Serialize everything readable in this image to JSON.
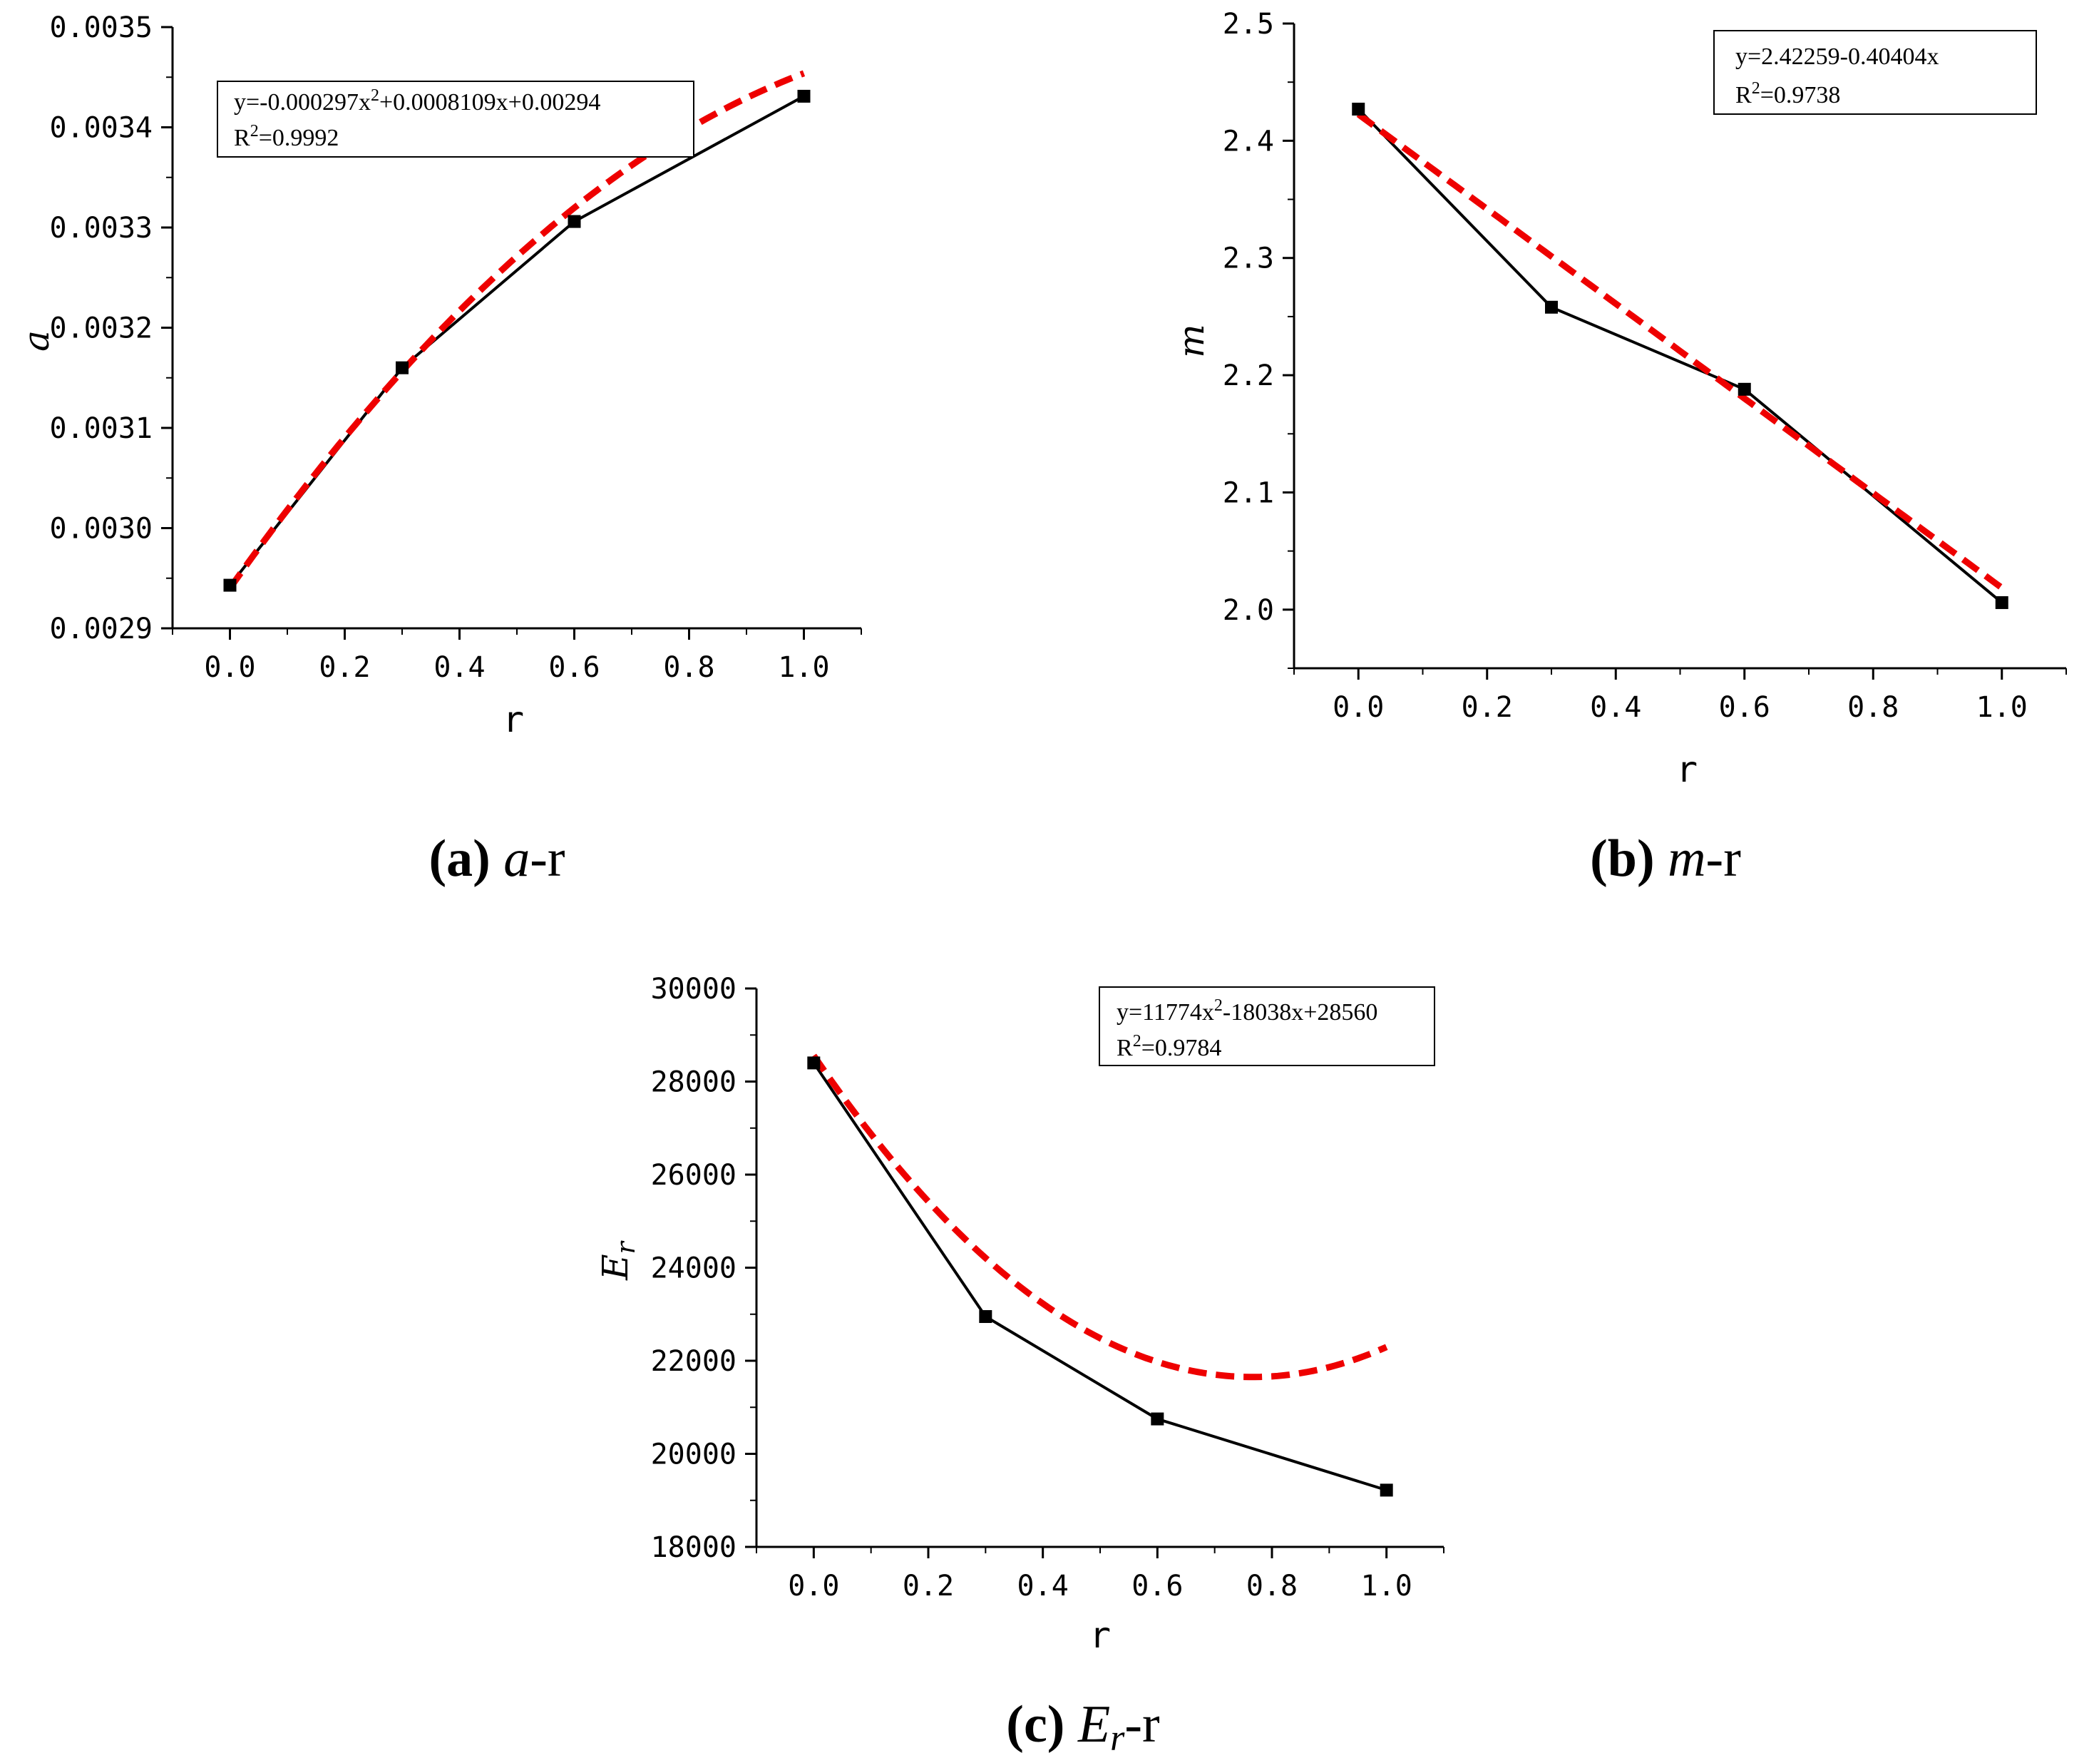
{
  "chart_data": [
    {
      "id": "a",
      "type": "line",
      "caption": {
        "letter": "(a)",
        "var": "a",
        "rest": "-r"
      },
      "xlabel": "r",
      "ylabel": "a",
      "xlim": [
        -0.1,
        1.1
      ],
      "ylim": [
        0.0029,
        0.0035
      ],
      "xticks": [
        0.0,
        0.2,
        0.4,
        0.6,
        0.8,
        1.0
      ],
      "xtick_labels": [
        "0.0",
        "0.2",
        "0.4",
        "0.6",
        "0.8",
        "1.0"
      ],
      "yticks": [
        0.0029,
        0.003,
        0.0031,
        0.0032,
        0.0033,
        0.0034,
        0.0035
      ],
      "ytick_labels": [
        "0.0029",
        "0.0030",
        "0.0031",
        "0.0032",
        "0.0033",
        "0.0034",
        "0.0035"
      ],
      "series": [
        {
          "name": "data",
          "color": "#000000",
          "x": [
            0.0,
            0.3,
            0.6,
            1.0
          ],
          "y": [
            0.002943,
            0.00316,
            0.003306,
            0.003431
          ]
        }
      ],
      "fit": {
        "coef": [
          -0.000297,
          0.0008109,
          0.00294
        ],
        "color": "#ee0000"
      },
      "legend": {
        "line1_pre": "y=-0.000297x",
        "line1_sup": "2",
        "line1_post": "+0.0008109x+0.00294",
        "line2_pre": "R",
        "line2_sup": "2",
        "line2_post": "=0.9992"
      }
    },
    {
      "id": "b",
      "type": "line",
      "caption": {
        "letter": "(b)",
        "var": "m",
        "rest": "-r"
      },
      "xlabel": "r",
      "ylabel": "m",
      "xlim": [
        -0.1,
        1.1
      ],
      "ylim": [
        1.95,
        2.5
      ],
      "xticks": [
        0.0,
        0.2,
        0.4,
        0.6,
        0.8,
        1.0
      ],
      "xtick_labels": [
        "0.0",
        "0.2",
        "0.4",
        "0.6",
        "0.8",
        "1.0"
      ],
      "yticks": [
        2.0,
        2.1,
        2.2,
        2.3,
        2.4,
        2.5
      ],
      "ytick_labels": [
        "2.0",
        "2.1",
        "2.2",
        "2.3",
        "2.4",
        "2.5"
      ],
      "series": [
        {
          "name": "data",
          "color": "#000000",
          "x": [
            0.0,
            0.3,
            0.6,
            1.0
          ],
          "y": [
            2.427,
            2.258,
            2.188,
            2.006
          ]
        }
      ],
      "fit": {
        "coef": [
          0,
          -0.40404,
          2.42259
        ],
        "color": "#ee0000"
      },
      "legend": {
        "line1_pre": "y=2.42259-0.40404x",
        "line1_sup": "",
        "line1_post": "",
        "line2_pre": "R",
        "line2_sup": "2",
        "line2_post": "=0.9738"
      }
    },
    {
      "id": "c",
      "type": "line",
      "caption": {
        "letter": "(c)",
        "var": "E",
        "var_sub": "r",
        "rest": "-r"
      },
      "xlabel": "r",
      "ylabel": "E",
      "ylabel_sub": "r",
      "xlim": [
        -0.1,
        1.1
      ],
      "ylim": [
        18000,
        30000
      ],
      "xticks": [
        0.0,
        0.2,
        0.4,
        0.6,
        0.8,
        1.0
      ],
      "xtick_labels": [
        "0.0",
        "0.2",
        "0.4",
        "0.6",
        "0.8",
        "1.0"
      ],
      "yticks": [
        18000,
        20000,
        22000,
        24000,
        26000,
        28000,
        30000
      ],
      "ytick_labels": [
        "18000",
        "20000",
        "22000",
        "24000",
        "26000",
        "28000",
        "30000"
      ],
      "series": [
        {
          "name": "data",
          "color": "#000000",
          "x": [
            0.0,
            0.3,
            0.6,
            1.0
          ],
          "y": [
            28400,
            22950,
            20750,
            19220
          ]
        }
      ],
      "fit": {
        "coef": [
          11774,
          -18038,
          28560
        ],
        "color": "#ee0000"
      },
      "legend": {
        "line1_pre": "y=11774x",
        "line1_sup": "2",
        "line1_post": "-18038x+28560",
        "line2_pre": "R",
        "line2_sup": "2",
        "line2_post": "=0.9784"
      }
    }
  ]
}
